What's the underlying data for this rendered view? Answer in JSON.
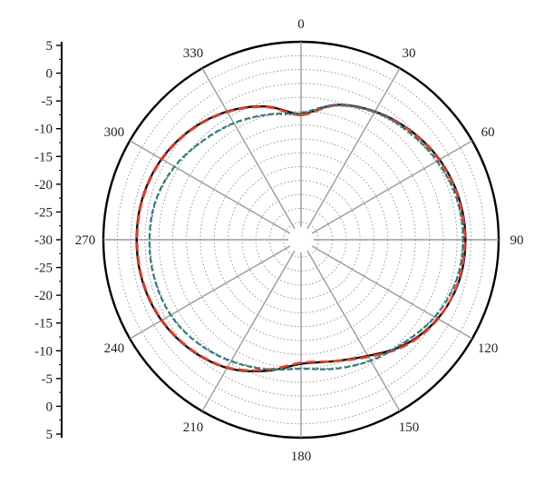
{
  "chart_data": {
    "type": "polar",
    "title": "",
    "angle_unit": "degrees",
    "angle_ticks": [
      0,
      30,
      60,
      90,
      120,
      150,
      180,
      210,
      240,
      270,
      300,
      330
    ],
    "angle_tick_labels": [
      "0",
      "30",
      "60",
      "90",
      "120",
      "150",
      "180",
      "210",
      "240",
      "270",
      "300",
      "330"
    ],
    "radial_range_db": [
      -30,
      5
    ],
    "radial_grid_db": [
      -25,
      -20,
      -15,
      -10,
      -5,
      0
    ],
    "radial_axis_labels": [
      "5",
      "0",
      "-5",
      "-10",
      "-15",
      "-20",
      "-25",
      "-30",
      "-25",
      "-20",
      "-15",
      "-10",
      "-5",
      "0",
      "5"
    ],
    "grid": true,
    "legend": "none",
    "colors": {
      "series_1": "#111111",
      "series_2": "#e8402a",
      "series_3": "#2d5fb0",
      "series_4": "#3e9a3a",
      "grid": "#9a9a9a",
      "spoke": "#9a9a9a"
    },
    "series": [
      {
        "style": "solid",
        "color": "#111111",
        "angles": [
          0,
          15,
          30,
          45,
          60,
          75,
          90,
          105,
          120,
          135,
          150,
          165,
          180,
          195,
          210,
          225,
          240,
          255,
          270,
          285,
          300,
          315,
          330,
          345
        ],
        "values": [
          -8.0,
          -5.5,
          -4.0,
          -2.8,
          -1.8,
          -1.2,
          -1.0,
          -1.2,
          -2.2,
          -4.0,
          -6.5,
          -8.0,
          -8.3,
          -6.2,
          -4.0,
          -2.6,
          -1.6,
          -1.1,
          -1.0,
          -1.1,
          -1.6,
          -2.6,
          -4.0,
          -5.8
        ]
      },
      {
        "style": "dashed",
        "color": "#e8402a",
        "angles": [
          0,
          15,
          30,
          45,
          60,
          75,
          90,
          105,
          120,
          135,
          150,
          165,
          180,
          195,
          210,
          225,
          240,
          255,
          270,
          285,
          300,
          315,
          330,
          345
        ],
        "values": [
          -8.2,
          -5.6,
          -4.1,
          -2.9,
          -1.9,
          -1.3,
          -1.1,
          -1.3,
          -2.1,
          -3.8,
          -6.3,
          -8.0,
          -8.5,
          -6.4,
          -4.1,
          -2.7,
          -1.7,
          -1.2,
          -1.1,
          -1.2,
          -1.7,
          -2.7,
          -4.1,
          -5.9
        ]
      },
      {
        "style": "dashed",
        "color": "#2d5fb0",
        "angles": [
          0,
          15,
          30,
          45,
          60,
          75,
          90,
          105,
          120,
          135,
          150,
          165,
          180,
          195,
          210,
          225,
          240,
          255,
          270,
          285,
          300,
          315,
          330,
          345
        ],
        "values": [
          -7.8,
          -5.5,
          -4.0,
          -3.2,
          -2.3,
          -1.6,
          -1.4,
          -1.7,
          -2.8,
          -4.4,
          -5.5,
          -6.6,
          -7.4,
          -6.5,
          -5.4,
          -4.3,
          -3.5,
          -3.3,
          -3.3,
          -3.5,
          -4.3,
          -5.5,
          -6.4,
          -7.3
        ]
      },
      {
        "style": "dotted",
        "color": "#3e9a3a",
        "angles": [
          0,
          15,
          30,
          45,
          60,
          75,
          90,
          105,
          120,
          135,
          150,
          165,
          180,
          195,
          210,
          225,
          240,
          255,
          270,
          285,
          300,
          315,
          330,
          345
        ],
        "values": [
          -8.0,
          -5.7,
          -4.2,
          -3.3,
          -2.4,
          -1.7,
          -1.5,
          -1.8,
          -2.9,
          -4.5,
          -5.6,
          -6.7,
          -7.5,
          -6.6,
          -5.5,
          -4.4,
          -3.6,
          -3.4,
          -3.4,
          -3.6,
          -4.4,
          -5.6,
          -6.5,
          -7.4
        ]
      }
    ]
  }
}
